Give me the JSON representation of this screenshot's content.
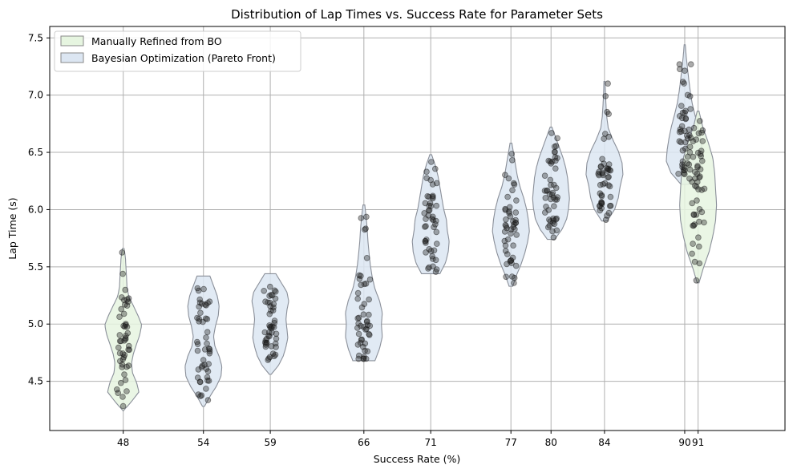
{
  "chart_data": {
    "type": "violin",
    "title": "Distribution of Lap Times vs. Success Rate for Parameter Sets",
    "xlabel": "Success Rate (%)",
    "ylabel": "Lap Time (s)",
    "xlim": [
      42.5,
      97.5
    ],
    "ylim": [
      4.07,
      7.6
    ],
    "x_ticks": [
      48,
      54,
      59,
      66,
      71,
      77,
      80,
      84,
      90,
      91
    ],
    "y_ticks": [
      "4.5",
      "5.0",
      "5.5",
      "6.0",
      "6.5",
      "7.0",
      "7.5"
    ],
    "grid": true,
    "legend_position": "top-left",
    "series": [
      {
        "name": "Manually Refined from BO",
        "color": "#e6f5e0"
      },
      {
        "name": "Bayesian Optimization (Pareto Front)",
        "color": "#dce6f2"
      }
    ],
    "violins": [
      {
        "x": 48,
        "series": 0,
        "min": 4.24,
        "max": 5.66,
        "median": 4.85,
        "profile": [
          0.0,
          0.45,
          0.85,
          0.72,
          0.5,
          0.45,
          0.55,
          0.72,
          0.9,
          1.0,
          0.8,
          0.55,
          0.3,
          0.2,
          0.18,
          0.15,
          0.12,
          0.05
        ]
      },
      {
        "x": 54,
        "series": 1,
        "min": 4.28,
        "max": 5.42,
        "median": 4.84,
        "profile": [
          0.05,
          0.35,
          0.7,
          0.95,
          1.0,
          0.85,
          0.62,
          0.55,
          0.65,
          0.8,
          0.85,
          0.75,
          0.55,
          0.35
        ]
      },
      {
        "x": 59,
        "series": 1,
        "min": 4.56,
        "max": 5.44,
        "median": 5.02,
        "profile": [
          0.05,
          0.45,
          0.7,
          0.85,
          0.95,
          0.9,
          0.85,
          0.9,
          1.0,
          0.9,
          0.6,
          0.3
        ]
      },
      {
        "x": 66,
        "series": 1,
        "min": 4.68,
        "max": 6.04,
        "median": 5.1,
        "profile": [
          0.6,
          0.85,
          1.0,
          0.95,
          1.0,
          0.85,
          0.6,
          0.45,
          0.35,
          0.28,
          0.22,
          0.18,
          0.12,
          0.05
        ]
      },
      {
        "x": 71,
        "series": 1,
        "min": 5.44,
        "max": 6.48,
        "median": 5.81,
        "profile": [
          0.5,
          0.8,
          0.95,
          1.0,
          0.9,
          0.85,
          0.7,
          0.6,
          0.5,
          0.4,
          0.25,
          0.05
        ]
      },
      {
        "x": 77,
        "series": 1,
        "min": 5.33,
        "max": 6.58,
        "median": 5.85,
        "profile": [
          0.1,
          0.3,
          0.55,
          0.75,
          0.9,
          1.0,
          0.95,
          0.85,
          0.7,
          0.5,
          0.35,
          0.25,
          0.15,
          0.05
        ]
      },
      {
        "x": 80,
        "series": 1,
        "min": 5.74,
        "max": 6.72,
        "median": 6.2,
        "profile": [
          0.2,
          0.6,
          0.85,
          0.95,
          1.0,
          0.95,
          0.9,
          0.8,
          0.65,
          0.45,
          0.25,
          0.05
        ]
      },
      {
        "x": 84,
        "series": 1,
        "min": 5.9,
        "max": 7.12,
        "median": 6.33,
        "profile": [
          0.15,
          0.55,
          0.75,
          0.85,
          1.0,
          0.95,
          0.75,
          0.45,
          0.2,
          0.12,
          0.08,
          0.05,
          0.03
        ]
      },
      {
        "x": 90,
        "series": 1,
        "min": 6.22,
        "max": 7.44,
        "median": 6.58,
        "profile": [
          0.2,
          0.75,
          1.0,
          0.95,
          0.85,
          0.72,
          0.55,
          0.4,
          0.3,
          0.22,
          0.15,
          0.08,
          0.03
        ]
      },
      {
        "x": 91,
        "series": 0,
        "min": 5.36,
        "max": 6.86,
        "median": 6.1,
        "profile": [
          0.05,
          0.3,
          0.6,
          0.8,
          0.95,
          1.0,
          0.95,
          0.9,
          0.8,
          0.55,
          0.25,
          0.05
        ]
      }
    ]
  }
}
